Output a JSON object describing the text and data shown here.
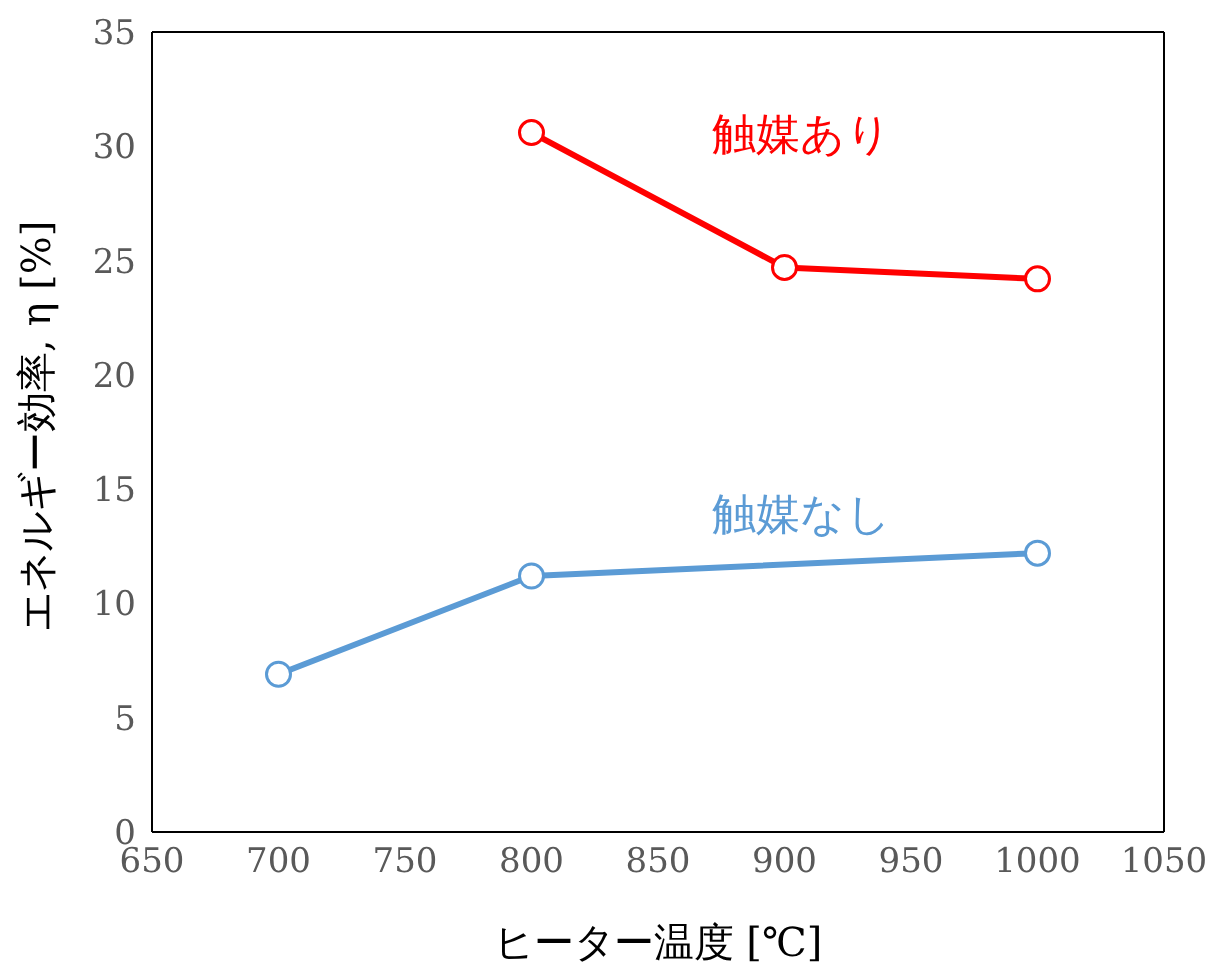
{
  "chart_data": {
    "type": "line",
    "xlabel": "ヒーター温度 [℃]",
    "ylabel": "エネルギー効率, η [%]",
    "xlim": [
      650,
      1050
    ],
    "xticks": [
      650,
      700,
      750,
      800,
      850,
      900,
      950,
      1000,
      1050
    ],
    "ylim": [
      0,
      35
    ],
    "yticks": [
      0,
      5,
      10,
      15,
      20,
      25,
      30,
      35
    ],
    "grid": false,
    "legend": false,
    "marker": "circle",
    "line_style": "solid",
    "series": [
      {
        "name": "触媒あり",
        "color": "#ff0000",
        "x": [
          800,
          900,
          1000
        ],
        "values": [
          30.6,
          24.7,
          24.2
        ]
      },
      {
        "name": "触媒なし",
        "color": "#5b9bd5",
        "x": [
          700,
          800,
          1000
        ],
        "values": [
          6.9,
          11.2,
          12.2
        ]
      }
    ]
  }
}
